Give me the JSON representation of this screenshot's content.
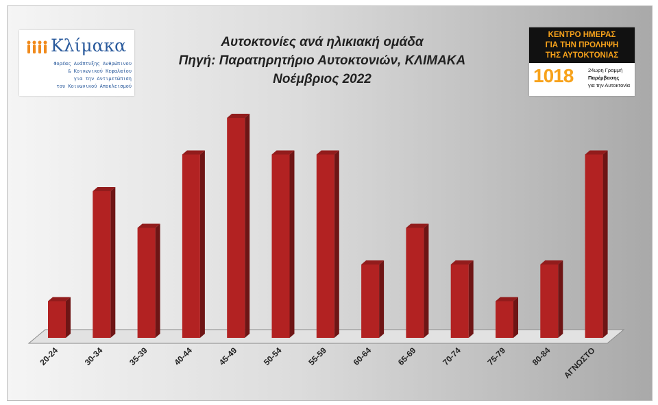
{
  "chart_data": {
    "type": "bar",
    "title": [
      "Αυτοκτονίες ανά ηλικιακή ομάδα",
      "Πηγή: Παρατηρητήριο Αυτοκτονιών, ΚΛΙΜΑΚΑ",
      "Νοέμβριος 2022"
    ],
    "categories": [
      "20-24",
      "30-34",
      "35-39",
      "40-44",
      "45-49",
      "50-54",
      "55-59",
      "60-64",
      "65-69",
      "70-74",
      "75-79",
      "80-84",
      "ΑΓΝΩΣΤΟ"
    ],
    "values": [
      1,
      4,
      3,
      5,
      6,
      5,
      5,
      2,
      3,
      2,
      1,
      2,
      5
    ],
    "xlabel": "",
    "ylabel": "",
    "ylim": [
      0,
      6
    ],
    "grid": false,
    "legend": "none",
    "bar_color": "#b22222"
  },
  "logo_left": {
    "brand": "Κλίμακα",
    "tagline": [
      "Φορέας Ανάπτυξης Ανθρώπινου",
      "& Κοινωνικού Κεφαλαίου",
      "για την Αντιμετώπιση",
      "του Κοινωνικού Αποκλεισμού"
    ]
  },
  "logo_right": {
    "header": [
      "ΚΕΝΤΡΟ ΗΜΕΡΑΣ",
      "ΓΙΑ ΤΗΝ ΠΡΟΛΗΨΗ",
      "ΤΗΣ ΑΥΤΟΚΤΟΝΙΑΣ"
    ],
    "number": "1018",
    "sub": [
      "24ωρη Γραμμή",
      "Παρέμβασης",
      "για την Αυτοκτονία"
    ]
  },
  "colors": {
    "accent_orange": "#f7a21b",
    "brand_blue": "#2a5a9c"
  }
}
